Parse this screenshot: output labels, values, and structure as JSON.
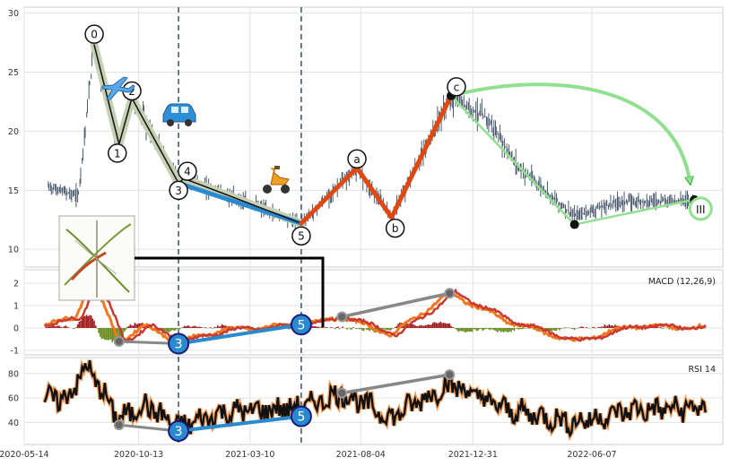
{
  "chart_data": [
    {
      "type": "line",
      "panel": "price",
      "ylim": [
        8.5,
        30.5
      ],
      "yticks": [
        10,
        15,
        20,
        25,
        30
      ],
      "grid": true,
      "colors": {
        "price": "#4a5a6e",
        "impulse": "#1a1a1a",
        "impulse_band": "#c8d0b4",
        "leg3to5": "#2a8ad0",
        "corrective": "#e04810",
        "forecast": "#90e090",
        "forecast_edge": "#33aa33"
      },
      "icons": [
        "airplane-icon",
        "car-icon",
        "scooter-icon",
        "inset-image"
      ],
      "wave_points": [
        {
          "label": "0",
          "date": "2020-08-15",
          "value": 27.3
        },
        {
          "label": "1",
          "date": "2020-09-17",
          "value": 18.9
        },
        {
          "label": "2",
          "date": "2020-10-04",
          "value": 22.8
        },
        {
          "label": "3",
          "date": "2020-12-05",
          "value": 15.6
        },
        {
          "label": "4",
          "date": "2020-12-12",
          "value": 16.0
        },
        {
          "label": "5",
          "date": "2021-05-17",
          "value": 12.2
        },
        {
          "label": "a",
          "date": "2021-07-30",
          "value": 16.9
        },
        {
          "label": "b",
          "date": "2021-09-14",
          "value": 12.7
        },
        {
          "label": "c",
          "date": "2021-12-02",
          "value": 23.0
        }
      ],
      "forecast_points": [
        {
          "label": "",
          "date": "2021-12-02",
          "value": 23.0
        },
        {
          "label": "",
          "date": "2022-05-15",
          "value": 12.1
        },
        {
          "label": "III",
          "date": "2022-10-20",
          "value": 14.2
        }
      ],
      "guide_dates": [
        "2020-12-05",
        "2021-05-17"
      ]
    },
    {
      "type": "line",
      "panel": "macd",
      "title": "MACD (12,26,9)",
      "ylim": [
        -1.2,
        2.6
      ],
      "yticks": [
        -1,
        0,
        1,
        2
      ],
      "series": [
        {
          "key": "macd",
          "color": "#f07820"
        },
        {
          "key": "signal",
          "color": "#c83a30"
        },
        {
          "key": "hist",
          "color": "#a02020"
        }
      ],
      "divergence_low": [
        {
          "label": "",
          "date": "2020-09-17",
          "value": -0.6
        },
        {
          "label": "3",
          "date": "2020-12-05",
          "value": -0.7
        },
        {
          "label": "5",
          "date": "2021-05-17",
          "value": 0.15
        }
      ],
      "divergence_high": [
        {
          "date": "2021-07-10",
          "value": 0.5
        },
        {
          "date": "2021-11-30",
          "value": 1.55
        }
      ]
    },
    {
      "type": "line",
      "panel": "rsi",
      "title": "RSI 14",
      "ylim": [
        22,
        93
      ],
      "yticks": [
        40,
        60,
        80
      ],
      "series": [
        {
          "key": "rsi",
          "color": "#111111",
          "halo": "#f0a060"
        }
      ],
      "divergence_low": [
        {
          "label": "",
          "date": "2020-09-17",
          "value": 38
        },
        {
          "label": "3",
          "date": "2020-12-05",
          "value": 33
        },
        {
          "label": "5",
          "date": "2021-05-17",
          "value": 45
        }
      ],
      "divergence_high": [
        {
          "date": "2021-07-10",
          "value": 64
        },
        {
          "date": "2021-11-30",
          "value": 79
        }
      ]
    }
  ],
  "xaxis": {
    "range": [
      "2020-05-14",
      "2022-11-28"
    ],
    "tick_dates": [
      "2020-05-14",
      "2020-10-13",
      "2021-03-10",
      "2021-08-04",
      "2021-12-31",
      "2022-06-07"
    ],
    "tick_labels": [
      "2020-05-14",
      "2020-10-13",
      "2021-03-10",
      "2021-08-04",
      "2021-12-31",
      "2022-06-07"
    ]
  }
}
